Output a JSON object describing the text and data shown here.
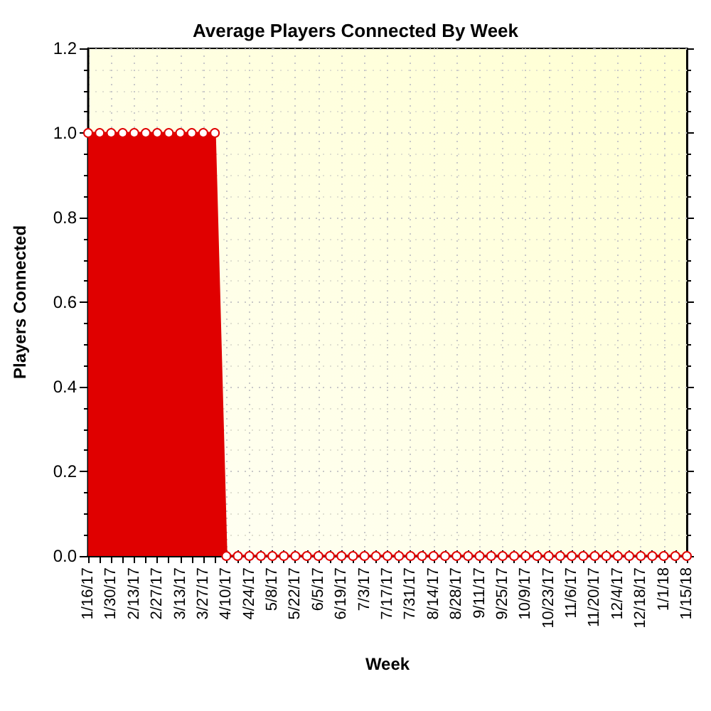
{
  "chart_data": {
    "type": "area",
    "title": "Average Players Connected By Week",
    "xlabel": "Week",
    "ylabel": "Players Connected",
    "categories": [
      "1/16/17",
      null,
      "1/30/17",
      null,
      "2/13/17",
      null,
      "2/27/17",
      null,
      "3/13/17",
      null,
      "3/27/17",
      null,
      "4/10/17",
      null,
      "4/24/17",
      null,
      "5/8/17",
      null,
      "5/22/17",
      null,
      "6/5/17",
      null,
      "6/19/17",
      null,
      "7/3/17",
      null,
      "7/17/17",
      null,
      "7/31/17",
      null,
      "8/14/17",
      null,
      "8/28/17",
      null,
      "9/11/17",
      null,
      "9/25/17",
      null,
      "10/9/17",
      null,
      "10/23/17",
      null,
      "11/6/17",
      null,
      "11/20/17",
      null,
      "12/4/17",
      null,
      "12/18/17",
      null,
      "1/1/18",
      null,
      "1/15/18"
    ],
    "values": [
      1,
      1,
      1,
      1,
      1,
      1,
      1,
      1,
      1,
      1,
      1,
      1,
      0,
      0,
      0,
      0,
      0,
      0,
      0,
      0,
      0,
      0,
      0,
      0,
      0,
      0,
      0,
      0,
      0,
      0,
      0,
      0,
      0,
      0,
      0,
      0,
      0,
      0,
      0,
      0,
      0,
      0,
      0,
      0,
      0,
      0,
      0,
      0,
      0,
      0,
      0,
      0,
      0
    ],
    "color": "#e00000",
    "ylim": [
      0,
      1.2
    ],
    "yticks": [
      {
        "value": 0,
        "label": "0.0"
      },
      0.2,
      0.4,
      0.6,
      0.8,
      {
        "value": 1,
        "label": "1.0"
      },
      1.2
    ],
    "grid": true,
    "marker": "circle"
  }
}
